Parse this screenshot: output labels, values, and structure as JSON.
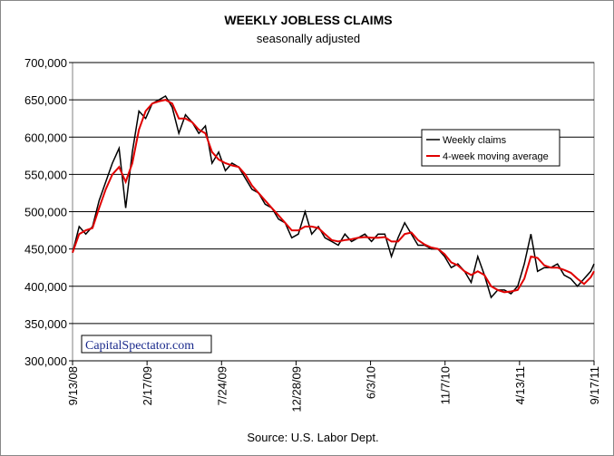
{
  "chart_data": {
    "type": "line",
    "title": "WEEKLY JOBLESS CLAIMS",
    "subtitle": "seasonally adjusted",
    "annotations": [
      "CapitalSpectator.com",
      "Source: U.S. Labor Dept."
    ],
    "x": [
      "9/13/08",
      "9/27/08",
      "10/11/08",
      "10/25/08",
      "11/8/08",
      "11/22/08",
      "12/6/08",
      "12/20/08",
      "1/3/09",
      "1/17/09",
      "1/31/09",
      "2/14/09",
      "2/28/09",
      "3/14/09",
      "3/28/09",
      "4/11/09",
      "4/25/09",
      "5/9/09",
      "5/23/09",
      "6/6/09",
      "6/20/09",
      "7/4/09",
      "7/18/09",
      "8/1/09",
      "8/15/09",
      "8/29/09",
      "9/12/09",
      "9/26/09",
      "10/10/09",
      "10/24/09",
      "11/7/09",
      "11/21/09",
      "12/5/09",
      "12/19/09",
      "1/2/10",
      "1/16/10",
      "1/30/10",
      "2/13/10",
      "2/27/10",
      "3/13/10",
      "3/27/10",
      "4/10/10",
      "4/24/10",
      "5/8/10",
      "5/22/10",
      "6/5/10",
      "6/19/10",
      "7/3/10",
      "7/17/10",
      "7/31/10",
      "8/14/10",
      "8/28/10",
      "9/11/10",
      "9/25/10",
      "10/9/10",
      "10/23/10",
      "11/6/10",
      "11/20/10",
      "12/4/10",
      "12/18/10",
      "1/1/11",
      "1/15/11",
      "1/29/11",
      "2/12/11",
      "2/26/11",
      "3/12/11",
      "3/26/11",
      "4/9/11",
      "4/23/11",
      "5/7/11",
      "5/21/11",
      "6/4/11",
      "6/18/11",
      "7/2/11",
      "7/16/11",
      "7/30/11",
      "8/13/11",
      "8/27/11",
      "9/10/11",
      "9/17/11"
    ],
    "series": [
      {
        "name": "Weekly claims",
        "color": "#000000",
        "values": [
          445000,
          480000,
          470000,
          480000,
          515000,
          540000,
          565000,
          585000,
          505000,
          580000,
          635000,
          625000,
          645000,
          650000,
          655000,
          640000,
          605000,
          630000,
          620000,
          605000,
          615000,
          565000,
          580000,
          555000,
          565000,
          560000,
          545000,
          530000,
          525000,
          510000,
          505000,
          490000,
          485000,
          465000,
          470000,
          500000,
          470000,
          480000,
          465000,
          460000,
          455000,
          470000,
          460000,
          465000,
          470000,
          460000,
          470000,
          470000,
          440000,
          465000,
          485000,
          470000,
          455000,
          455000,
          450000,
          450000,
          440000,
          425000,
          430000,
          420000,
          405000,
          440000,
          415000,
          385000,
          395000,
          395000,
          390000,
          400000,
          430000,
          470000,
          420000,
          425000,
          425000,
          430000,
          415000,
          410000,
          400000,
          410000,
          420000,
          430000
        ]
      },
      {
        "name": "4-week moving average",
        "color": "#e00000",
        "values": [
          445000,
          470000,
          475000,
          478000,
          505000,
          530000,
          550000,
          560000,
          540000,
          565000,
          610000,
          635000,
          645000,
          648000,
          650000,
          645000,
          625000,
          625000,
          620000,
          610000,
          605000,
          580000,
          570000,
          565000,
          562000,
          560000,
          550000,
          535000,
          525000,
          515000,
          505000,
          495000,
          485000,
          475000,
          475000,
          480000,
          480000,
          478000,
          470000,
          462000,
          460000,
          462000,
          463000,
          465000,
          466000,
          465000,
          465000,
          466000,
          460000,
          460000,
          470000,
          472000,
          462000,
          456000,
          452000,
          450000,
          443000,
          432000,
          428000,
          420000,
          415000,
          420000,
          415000,
          400000,
          395000,
          392000,
          393000,
          395000,
          410000,
          440000,
          438000,
          428000,
          425000,
          425000,
          422000,
          418000,
          410000,
          403000,
          412000,
          420000
        ]
      }
    ],
    "xlim": [
      "9/13/08",
      "9/17/11"
    ],
    "xticks": [
      "9/13/08",
      "2/17/09",
      "7/24/09",
      "12/28/09",
      "6/3/10",
      "11/7/10",
      "4/13/11",
      "9/17/11"
    ],
    "ylim": [
      300000,
      700000
    ],
    "yticks": [
      {
        "value": 300000,
        "label": "300,000"
      },
      {
        "value": 350000,
        "label": "350,000"
      },
      {
        "value": 400000,
        "label": "400,000"
      },
      {
        "value": 450000,
        "label": "450,000"
      },
      {
        "value": 500000,
        "label": "500,000"
      },
      {
        "value": 550000,
        "label": "550,000"
      },
      {
        "value": 600000,
        "label": "600,000"
      },
      {
        "value": 650000,
        "label": "650,000"
      },
      {
        "value": 700000,
        "label": "700,000"
      }
    ],
    "grid": true
  }
}
